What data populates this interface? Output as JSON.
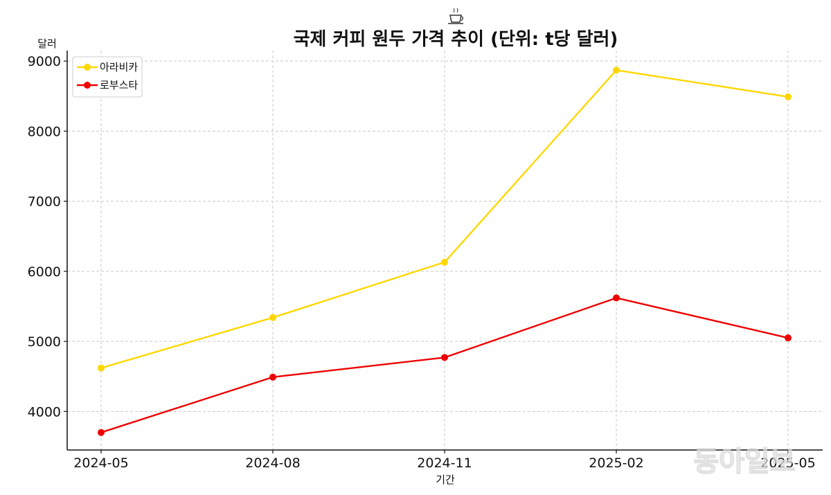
{
  "chart_data": {
    "type": "line",
    "title": "국제 커피 원두 가격 추이 (단위: t당 달러)",
    "icon": "coffee-cup-icon",
    "xlabel": "기간",
    "ylabel": "달러",
    "categories": [
      "2024-05",
      "2024-08",
      "2024-11",
      "2025-02",
      "2025-05"
    ],
    "ylim": [
      3450,
      9150
    ],
    "yticks": [
      4000,
      5000,
      6000,
      7000,
      8000,
      9000
    ],
    "grid": true,
    "legend_position": "top-left",
    "series": [
      {
        "name": "아라비카",
        "color": "#FFD700",
        "values": [
          4620,
          5340,
          6130,
          8870,
          8490
        ]
      },
      {
        "name": "로부스타",
        "color": "#EE0000",
        "values": [
          3700,
          4490,
          4770,
          5620,
          5050
        ]
      }
    ]
  },
  "watermark": "동아일보"
}
